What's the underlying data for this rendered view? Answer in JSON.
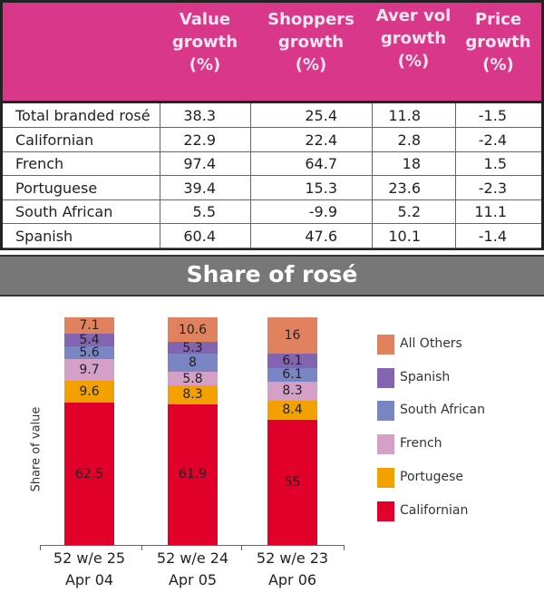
{
  "table": {
    "headers": [
      "",
      "Value growth (%)",
      "Shoppers growth (%)",
      "Aver vol growth (%)",
      "Price growth (%)"
    ],
    "header_lines": [
      [
        "Value",
        "growth",
        "(%)"
      ],
      [
        "Shoppers",
        "growth",
        "(%)"
      ],
      [
        "Aver vol",
        "growth",
        "(%)"
      ],
      [
        "Price",
        "growth",
        "(%)"
      ]
    ],
    "rows": [
      [
        "Total branded rosé",
        "38.3",
        "25.4",
        "11.8",
        "-1.5"
      ],
      [
        "Californian",
        "22.9",
        "22.4",
        "2.8",
        "-2.4"
      ],
      [
        "French",
        "97.4",
        "64.7",
        "18",
        "1.5"
      ],
      [
        "Portuguese",
        "39.4",
        "15.3",
        "23.6",
        "-2.3"
      ],
      [
        "South African",
        "5.5",
        "-9.9",
        "5.2",
        "11.1"
      ],
      [
        "Spanish",
        "60.4",
        "47.6",
        "10.1",
        "-1.4"
      ]
    ],
    "header_color": "#d9388a"
  },
  "chart_data": {
    "type": "bar",
    "stacked": true,
    "title": "Share of rosé",
    "ylabel": "Share of value",
    "xlabel": "",
    "categories": [
      [
        "52 w/e 25",
        "Apr 04"
      ],
      [
        "52 w/e 24",
        "Apr 05"
      ],
      [
        "52 w/e 23",
        "Apr 06"
      ]
    ],
    "ylim": [
      0,
      100
    ],
    "legend_position": "right",
    "series": [
      {
        "name": "Californian",
        "color": "#e0002a",
        "values": [
          62.5,
          61.9,
          55
        ]
      },
      {
        "name": "Portugese",
        "color": "#f2a100",
        "values": [
          9.6,
          8.3,
          8.4
        ]
      },
      {
        "name": "French",
        "color": "#d4a0c8",
        "values": [
          9.7,
          5.8,
          8.3
        ]
      },
      {
        "name": "South African",
        "color": "#7a86c4",
        "values": [
          5.6,
          8,
          6.1
        ]
      },
      {
        "name": "Spanish",
        "color": "#8264b0",
        "values": [
          5.4,
          5.3,
          6.1
        ]
      },
      {
        "name": "All Others",
        "color": "#e0825e",
        "values": [
          7.1,
          10.6,
          16
        ]
      }
    ]
  }
}
